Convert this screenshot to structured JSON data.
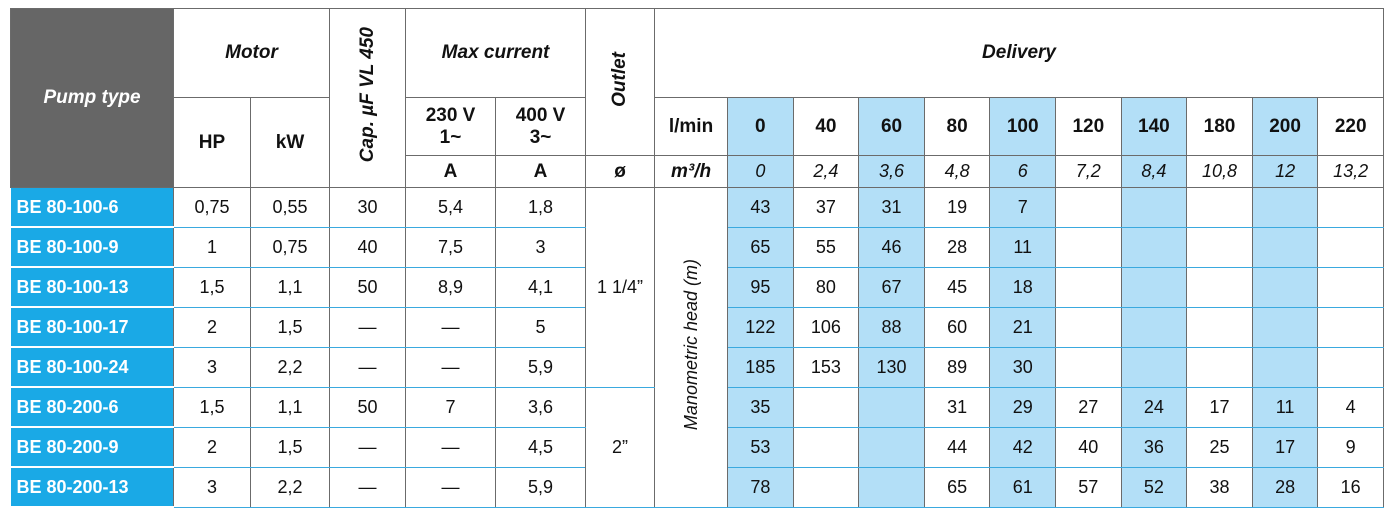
{
  "header": {
    "pump_type": "Pump type",
    "motor": "Motor",
    "hp": "HP",
    "kw": "kW",
    "cap": "Cap. µF VL 450",
    "max_current": "Max current",
    "v230": [
      "230 V",
      "1~"
    ],
    "v400": [
      "400 V",
      "3~"
    ],
    "current_units": [
      "A",
      "A"
    ],
    "outlet": "Outlet",
    "outlet_unit": "ø",
    "delivery": "Delivery",
    "lmin": "l/min",
    "m3h": "m³/h",
    "manometric_head": "Manometric head (m)",
    "flow_lmin": [
      "0",
      "40",
      "60",
      "80",
      "100",
      "120",
      "140",
      "180",
      "200",
      "220"
    ],
    "flow_m3h": [
      "0",
      "2,4",
      "3,6",
      "4,8",
      "6",
      "7,2",
      "8,4",
      "10,8",
      "12",
      "13,2"
    ]
  },
  "outlets": [
    "1 1/4”",
    "2”"
  ],
  "rows": [
    {
      "pump": "BE 80-100-6",
      "hp": "0,75",
      "kw": "0,55",
      "cap": "30",
      "i230": "5,4",
      "i400": "1,8",
      "heads": [
        "43",
        "37",
        "31",
        "19",
        "7",
        null,
        null,
        null,
        null,
        null
      ]
    },
    {
      "pump": "BE 80-100-9",
      "hp": "1",
      "kw": "0,75",
      "cap": "40",
      "i230": "7,5",
      "i400": "3",
      "heads": [
        "65",
        "55",
        "46",
        "28",
        "11",
        null,
        null,
        null,
        null,
        null
      ]
    },
    {
      "pump": "BE 80-100-13",
      "hp": "1,5",
      "kw": "1,1",
      "cap": "50",
      "i230": "8,9",
      "i400": "4,1",
      "heads": [
        "95",
        "80",
        "67",
        "45",
        "18",
        null,
        null,
        null,
        null,
        null
      ]
    },
    {
      "pump": "BE 80-100-17",
      "hp": "2",
      "kw": "1,5",
      "cap": "—",
      "i230": "—",
      "i400": "5",
      "heads": [
        "122",
        "106",
        "88",
        "60",
        "21",
        null,
        null,
        null,
        null,
        null
      ]
    },
    {
      "pump": "BE 80-100-24",
      "hp": "3",
      "kw": "2,2",
      "cap": "—",
      "i230": "—",
      "i400": "5,9",
      "heads": [
        "185",
        "153",
        "130",
        "89",
        "30",
        null,
        null,
        null,
        null,
        null
      ]
    },
    {
      "pump": "BE 80-200-6",
      "hp": "1,5",
      "kw": "1,1",
      "cap": "50",
      "i230": "7",
      "i400": "3,6",
      "heads": [
        "35",
        null,
        null,
        "31",
        "29",
        "27",
        "24",
        "17",
        "11",
        "4"
      ]
    },
    {
      "pump": "BE 80-200-9",
      "hp": "2",
      "kw": "1,5",
      "cap": "—",
      "i230": "—",
      "i400": "4,5",
      "heads": [
        "53",
        null,
        null,
        "44",
        "42",
        "40",
        "36",
        "25",
        "17",
        "9"
      ]
    },
    {
      "pump": "BE 80-200-13",
      "hp": "3",
      "kw": "2,2",
      "cap": "—",
      "i230": "—",
      "i400": "5,9",
      "heads": [
        "78",
        null,
        null,
        "65",
        "61",
        "57",
        "52",
        "38",
        "28",
        "16"
      ]
    }
  ]
}
